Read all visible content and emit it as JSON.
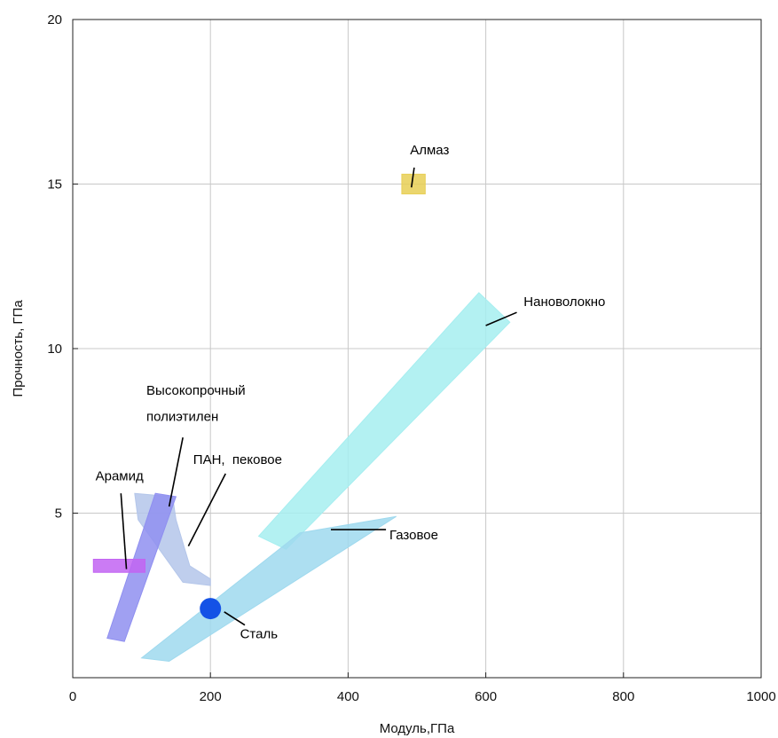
{
  "chart_data": {
    "type": "scatter",
    "title": "",
    "xlabel": "Модуль,ГПа",
    "ylabel": "Прочность, ГПа",
    "xlim": [
      0,
      1000
    ],
    "ylim": [
      0,
      20
    ],
    "x_ticks": [
      "0",
      "200",
      "400",
      "600",
      "800",
      "1000"
    ],
    "y_ticks": [
      "5",
      "10",
      "15",
      "20"
    ],
    "y_tick_values": [
      5,
      10,
      15,
      20
    ],
    "x_tick_values": [
      0,
      200,
      400,
      600,
      800,
      1000
    ],
    "grid": true,
    "regions": [
      {
        "name": "Нановолокно",
        "color": "#a6eef0",
        "polygon": [
          [
            270,
            4.3
          ],
          [
            590,
            11.7
          ],
          [
            635,
            10.8
          ],
          [
            310,
            3.9
          ]
        ]
      },
      {
        "name": "Газовое",
        "color": "#9fd9ee",
        "polygon": [
          [
            100,
            0.6
          ],
          [
            330,
            4.4
          ],
          [
            470,
            4.9
          ],
          [
            140,
            0.5
          ]
        ]
      },
      {
        "name": "Высокопрочный полиэтилен",
        "color": "#b4c6ea",
        "polygon": [
          [
            90,
            5.6
          ],
          [
            145,
            5.5
          ],
          [
            150,
            4.8
          ],
          [
            170,
            3.4
          ],
          [
            200,
            3.0
          ],
          [
            200,
            2.8
          ],
          [
            160,
            2.9
          ],
          [
            95,
            4.8
          ]
        ]
      },
      {
        "name": "ПАН, пековое",
        "color": "#8f8ff0",
        "polygon": [
          [
            50,
            1.2
          ],
          [
            75,
            1.1
          ],
          [
            150,
            5.5
          ],
          [
            120,
            5.6
          ]
        ]
      },
      {
        "name": "Арамид",
        "color": "#c264f2",
        "polygon": [
          [
            30,
            3.6
          ],
          [
            105,
            3.6
          ],
          [
            105,
            3.2
          ],
          [
            30,
            3.2
          ]
        ]
      },
      {
        "name": "Алмаз",
        "color": "#e8cf55",
        "polygon": [
          [
            478,
            15.3
          ],
          [
            512,
            15.3
          ],
          [
            512,
            14.7
          ],
          [
            478,
            14.7
          ]
        ]
      }
    ],
    "points": [
      {
        "name": "Сталь",
        "x": 200,
        "y": 2.1,
        "color": "#1452e6"
      }
    ],
    "annotations": [
      {
        "text": "Алмаз",
        "x": 490,
        "y": 15.9,
        "line": [
          [
            496,
            15.5
          ],
          [
            492,
            14.9
          ]
        ]
      },
      {
        "text": "Нановолокно",
        "x": 655,
        "y": 11.3,
        "line": [
          [
            645,
            11.1
          ],
          [
            600,
            10.7
          ]
        ]
      },
      {
        "text": "Высокопрочный",
        "x": 107,
        "y": 8.6,
        "line": [
          [
            160,
            7.3
          ],
          [
            140,
            5.2
          ]
        ]
      },
      {
        "text": "полиэтилен",
        "x": 107,
        "y": 7.8,
        "line": null
      },
      {
        "text": "ПАН,  пековое",
        "x": 175,
        "y": 6.5,
        "line": [
          [
            222,
            6.2
          ],
          [
            168,
            4.0
          ]
        ]
      },
      {
        "text": "Арамид",
        "x": 33,
        "y": 6.0,
        "line": [
          [
            70,
            5.6
          ],
          [
            78,
            3.3
          ]
        ]
      },
      {
        "text": "Газовое",
        "x": 460,
        "y": 4.2,
        "line": [
          [
            455,
            4.5
          ],
          [
            375,
            4.5
          ]
        ]
      },
      {
        "text": "Сталь",
        "x": 243,
        "y": 1.2,
        "line": [
          [
            250,
            1.6
          ],
          [
            220,
            2.0
          ]
        ]
      }
    ]
  }
}
